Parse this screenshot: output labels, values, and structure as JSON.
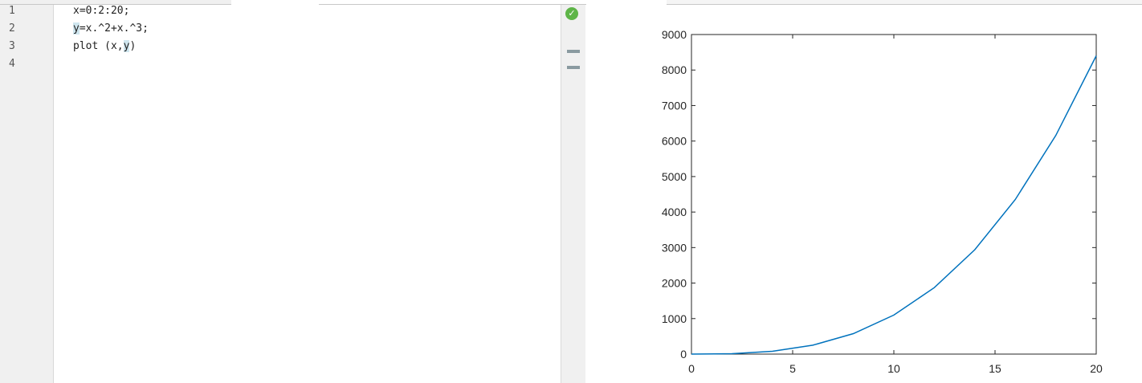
{
  "editor": {
    "line_numbers": [
      "1",
      "2",
      "3",
      "4"
    ],
    "code_lines": [
      {
        "pre": "",
        "hl": "",
        "post": "x=0:2:20;"
      },
      {
        "pre": "",
        "hl": "y",
        "post": "=x.^2+x.^3;"
      },
      {
        "pre": "plot (x,",
        "hl": "y",
        "post": ")"
      },
      {
        "pre": "",
        "hl": "",
        "post": ""
      }
    ],
    "status_icon": "check-circle-icon",
    "status_color": "#5eb548"
  },
  "chart_data": {
    "type": "line",
    "x": [
      0,
      2,
      4,
      6,
      8,
      10,
      12,
      14,
      16,
      18,
      20
    ],
    "series": [
      {
        "values": [
          0,
          12,
          80,
          252,
          576,
          1100,
          1872,
          2940,
          4352,
          6156,
          8400
        ],
        "color": "#0072bd"
      }
    ],
    "xlim": [
      0,
      20
    ],
    "ylim": [
      0,
      9000
    ],
    "xticks": [
      0,
      5,
      10,
      15,
      20
    ],
    "yticks": [
      0,
      1000,
      2000,
      3000,
      4000,
      5000,
      6000,
      7000,
      8000,
      9000
    ],
    "title": "",
    "xlabel": "",
    "ylabel": "",
    "grid": false
  }
}
